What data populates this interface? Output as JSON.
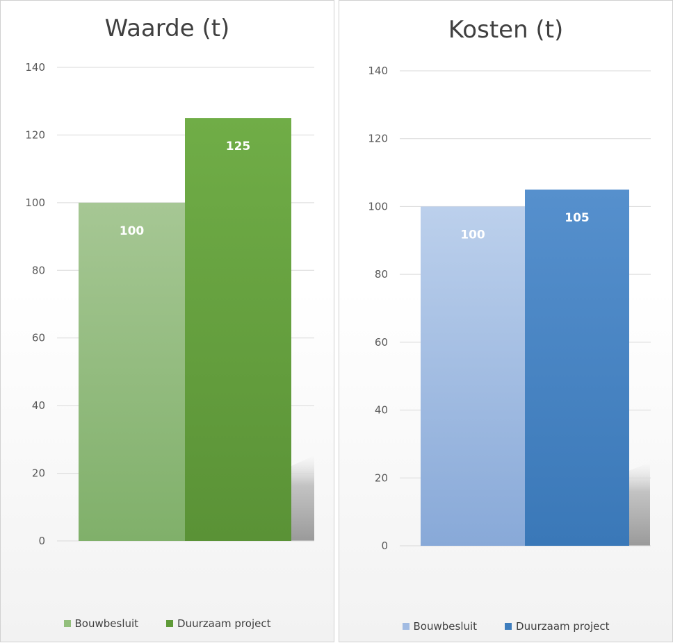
{
  "chart_data": [
    {
      "type": "bar",
      "title": "Waarde (t)",
      "categories": [
        "Bouwbesluit",
        "Duurzaam project"
      ],
      "values": [
        100,
        125
      ],
      "data_labels": [
        "100",
        "125"
      ],
      "yticks": [
        "0",
        "20",
        "40",
        "60",
        "80",
        "100",
        "120",
        "140"
      ],
      "ylim": [
        0,
        140
      ],
      "grid": true,
      "legend": "bottom",
      "colors": [
        "#93bf7c",
        "#5f9a38"
      ]
    },
    {
      "type": "bar",
      "title": "Kosten (t)",
      "categories": [
        "Bouwbesluit",
        "Duurzaam project"
      ],
      "values": [
        100,
        105
      ],
      "data_labels": [
        "100",
        "105"
      ],
      "yticks": [
        "0",
        "20",
        "40",
        "60",
        "80",
        "100",
        "120",
        "140"
      ],
      "ylim": [
        0,
        140
      ],
      "grid": true,
      "legend": "bottom",
      "colors": [
        "#a1bbe2",
        "#3e7dbd"
      ]
    }
  ]
}
